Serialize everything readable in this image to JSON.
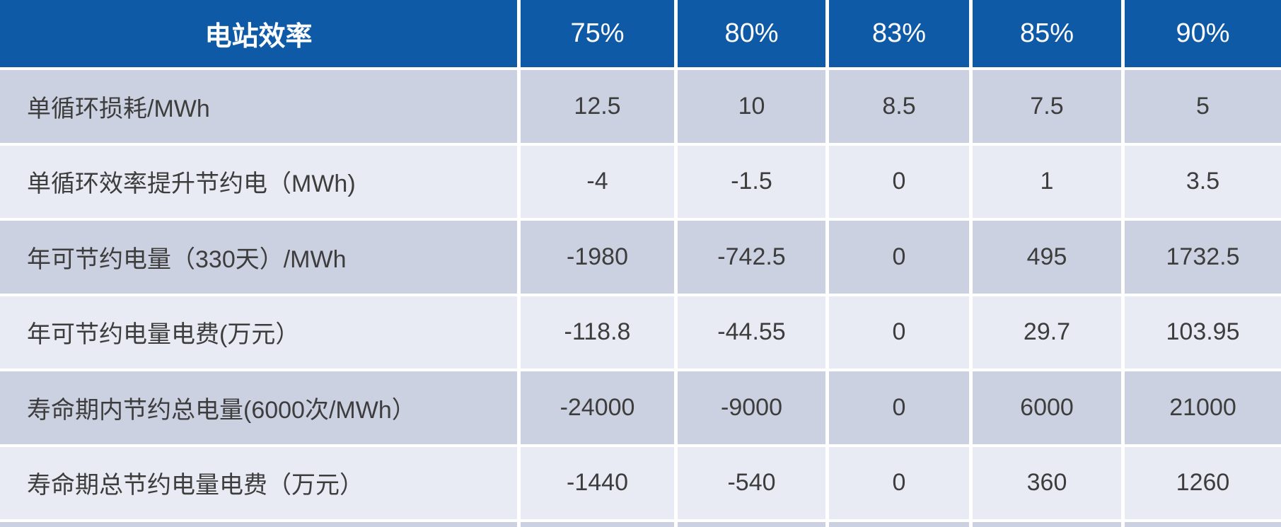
{
  "table": {
    "corner_header": "电站效率",
    "column_headers": [
      "75%",
      "80%",
      "83%",
      "85%",
      "90%"
    ],
    "rows": [
      {
        "label": "单循环损耗/MWh",
        "values": [
          "12.5",
          "10",
          "8.5",
          "7.5",
          "5"
        ]
      },
      {
        "label": "单循环效率提升节约电（MWh)",
        "values": [
          "-4",
          "-1.5",
          "0",
          "1",
          "3.5"
        ]
      },
      {
        "label": "年可节约电量（330天）/MWh",
        "values": [
          "-1980",
          "-742.5",
          "0",
          "495",
          "1732.5"
        ]
      },
      {
        "label": "年可节约电量电费(万元）",
        "values": [
          "-118.8",
          "-44.55",
          "0",
          "29.7",
          "103.95"
        ]
      },
      {
        "label": "寿命期内节约总电量(6000次/MWh）",
        "values": [
          "-24000",
          "-9000",
          "0",
          "6000",
          "21000"
        ]
      },
      {
        "label": "寿命期总节约电量电费（万元）",
        "values": [
          "-1440",
          "-540",
          "0",
          "360",
          "1260"
        ]
      }
    ]
  },
  "colors": {
    "header_bg": "#0e5aa7",
    "header_text": "#ffffff",
    "row_dark": "#cbd1e0",
    "row_light": "#e9ebf4",
    "body_text": "#3d3d3d",
    "gridline": "#ffffff"
  },
  "chart_data": {
    "type": "table",
    "title": "电站效率",
    "columns": [
      "75%",
      "80%",
      "83%",
      "85%",
      "90%"
    ],
    "rows": [
      {
        "label": "单循环损耗/MWh",
        "values": [
          12.5,
          10,
          8.5,
          7.5,
          5
        ]
      },
      {
        "label": "单循环效率提升节约电（MWh)",
        "values": [
          -4,
          -1.5,
          0,
          1,
          3.5
        ]
      },
      {
        "label": "年可节约电量（330天）/MWh",
        "values": [
          -1980,
          -742.5,
          0,
          495,
          1732.5
        ]
      },
      {
        "label": "年可节约电量电费(万元）",
        "values": [
          -118.8,
          -44.55,
          0,
          29.7,
          103.95
        ]
      },
      {
        "label": "寿命期内节约总电量(6000次/MWh）",
        "values": [
          -24000,
          -9000,
          0,
          6000,
          21000
        ]
      },
      {
        "label": "寿命期总节约电量电费（万元）",
        "values": [
          -1440,
          -540,
          0,
          360,
          1260
        ]
      }
    ],
    "layout": {
      "banding": "row-striped",
      "header_position": "top",
      "gridlines": "white"
    }
  }
}
